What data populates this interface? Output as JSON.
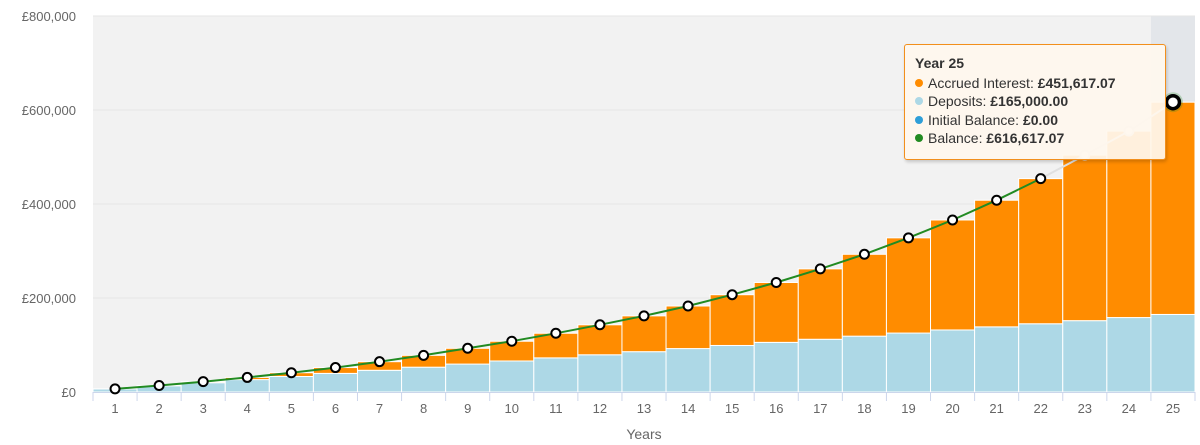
{
  "chart_data": {
    "type": "bar",
    "stacked": true,
    "xlabel": "Years",
    "ylabel": "",
    "ylim": [
      0,
      800000
    ],
    "yticks": [
      "£0",
      "£200,000",
      "£400,000",
      "£600,000",
      "£800,000"
    ],
    "categories": [
      "1",
      "2",
      "3",
      "4",
      "5",
      "6",
      "7",
      "8",
      "9",
      "10",
      "11",
      "12",
      "13",
      "14",
      "15",
      "16",
      "17",
      "18",
      "19",
      "20",
      "21",
      "22",
      "23",
      "24",
      "25"
    ],
    "series": [
      {
        "name": "Deposits",
        "color": "#add8e6",
        "values": [
          6600,
          13200,
          19800,
          26400,
          33000,
          39600,
          46200,
          52800,
          59400,
          66000,
          72600,
          79200,
          85800,
          92400,
          99000,
          105600,
          112200,
          118800,
          125400,
          132000,
          138600,
          145200,
          151800,
          158400,
          165000
        ]
      },
      {
        "name": "Accrued Interest",
        "color": "#ff8c00",
        "values": [
          100,
          600,
          2200,
          4600,
          8000,
          12400,
          18300,
          25200,
          33600,
          42000,
          52400,
          63800,
          76200,
          90600,
          108000,
          127400,
          149800,
          174200,
          202600,
          234000,
          269400,
          308800,
          352200,
          396600,
          451617.07
        ]
      },
      {
        "name": "Initial Balance",
        "color": "#2f9fd8",
        "values": [
          0,
          0,
          0,
          0,
          0,
          0,
          0,
          0,
          0,
          0,
          0,
          0,
          0,
          0,
          0,
          0,
          0,
          0,
          0,
          0,
          0,
          0,
          0,
          0,
          0
        ]
      },
      {
        "name": "Balance",
        "type": "line",
        "color": "#228b22",
        "values": [
          6700,
          13800,
          22000,
          31000,
          41000,
          52000,
          64500,
          78000,
          93000,
          108000,
          125000,
          143000,
          162000,
          183000,
          207000,
          233000,
          262000,
          293000,
          328000,
          366000,
          408000,
          454000,
          504000,
          555000,
          616617.07
        ]
      }
    ],
    "tooltip": {
      "title": "Year 25",
      "rows": [
        {
          "label": "Accrued Interest:",
          "value": "£451,617.07",
          "color": "#ff8c00"
        },
        {
          "label": "Deposits:",
          "value": "£165,000.00",
          "color": "#add8e6"
        },
        {
          "label": "Initial Balance:",
          "value": "£0.00",
          "color": "#2f9fd8"
        },
        {
          "label": "Balance:",
          "value": "£616,617.07",
          "color": "#228b22"
        }
      ]
    },
    "highlighted_category": "25",
    "grid": true,
    "legend": "none"
  }
}
